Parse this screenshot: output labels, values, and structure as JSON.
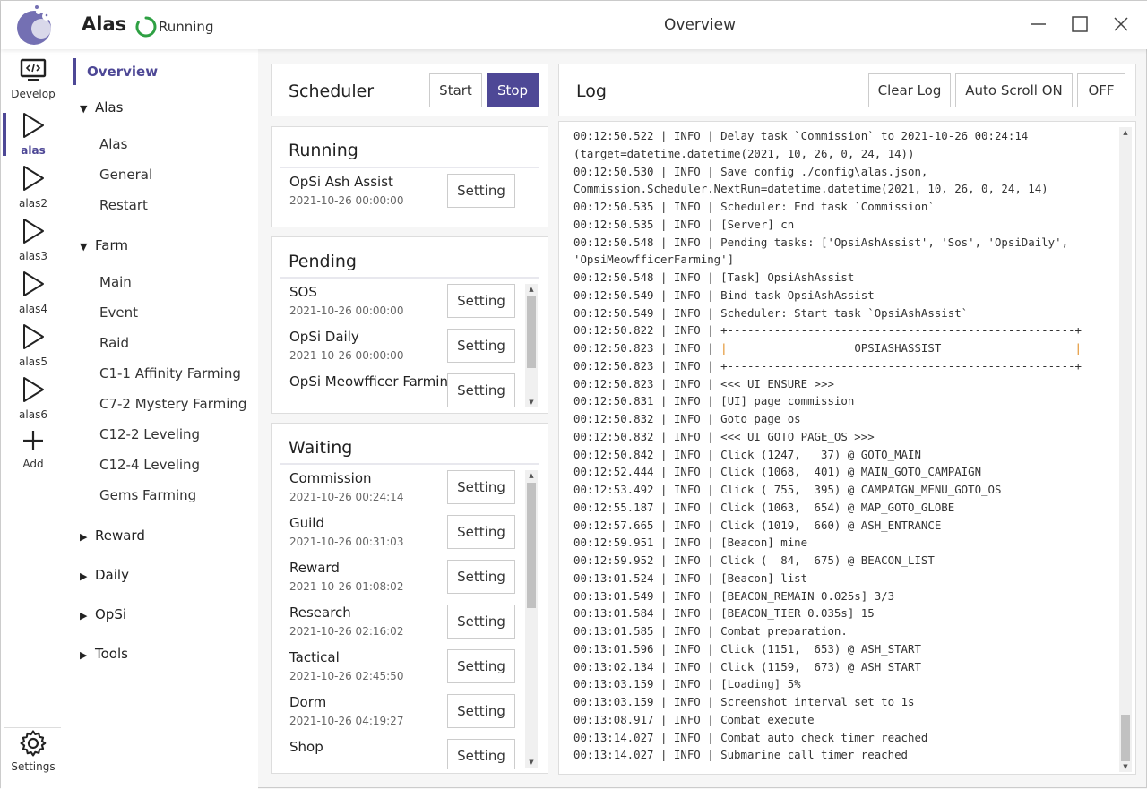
{
  "header": {
    "app_title": "Alas",
    "status": "Running",
    "page_title": "Overview",
    "status_color": "#2ea043"
  },
  "accent": "#4e4896",
  "iconbar": {
    "items": [
      {
        "label": "Develop",
        "icon": "monitor-code-icon"
      },
      {
        "label": "alas",
        "icon": "play-icon",
        "selected": true
      },
      {
        "label": "alas2",
        "icon": "play-icon"
      },
      {
        "label": "alas3",
        "icon": "play-icon"
      },
      {
        "label": "alas4",
        "icon": "play-icon"
      },
      {
        "label": "alas5",
        "icon": "play-icon"
      },
      {
        "label": "alas6",
        "icon": "play-icon"
      },
      {
        "label": "Add",
        "icon": "plus-icon"
      }
    ],
    "settings": "Settings"
  },
  "nav": {
    "overview": "Overview",
    "groups": [
      {
        "label": "Alas",
        "expanded": true,
        "items": [
          "Alas",
          "General",
          "Restart"
        ]
      },
      {
        "label": "Farm",
        "expanded": true,
        "items": [
          "Main",
          "Event",
          "Raid",
          "C1-1 Affinity Farming",
          "C7-2 Mystery Farming",
          "C12-2 Leveling",
          "C12-4 Leveling",
          "Gems Farming"
        ]
      },
      {
        "label": "Reward",
        "expanded": false,
        "items": []
      },
      {
        "label": "Daily",
        "expanded": false,
        "items": []
      },
      {
        "label": "OpSi",
        "expanded": false,
        "items": []
      },
      {
        "label": "Tools",
        "expanded": false,
        "items": []
      }
    ]
  },
  "scheduler": {
    "title": "Scheduler",
    "start": "Start",
    "stop": "Stop"
  },
  "setting_label": "Setting",
  "running": {
    "title": "Running",
    "tasks": [
      {
        "name": "OpSi Ash Assist",
        "time": "2021-10-26 00:00:00"
      }
    ]
  },
  "pending": {
    "title": "Pending",
    "tasks": [
      {
        "name": "SOS",
        "time": "2021-10-26 00:00:00"
      },
      {
        "name": "OpSi Daily",
        "time": "2021-10-26 00:00:00"
      },
      {
        "name": "OpSi Meowfficer Farming",
        "time": ""
      }
    ]
  },
  "waiting": {
    "title": "Waiting",
    "tasks": [
      {
        "name": "Commission",
        "time": "2021-10-26 00:24:14"
      },
      {
        "name": "Guild",
        "time": "2021-10-26 00:31:03"
      },
      {
        "name": "Reward",
        "time": "2021-10-26 01:08:02"
      },
      {
        "name": "Research",
        "time": "2021-10-26 02:16:02"
      },
      {
        "name": "Tactical",
        "time": "2021-10-26 02:45:50"
      },
      {
        "name": "Dorm",
        "time": "2021-10-26 04:19:27"
      },
      {
        "name": "Shop",
        "time": ""
      }
    ]
  },
  "log": {
    "title": "Log",
    "clear": "Clear Log",
    "autoscroll": "Auto Scroll ON",
    "off": "OFF",
    "lines": [
      "00:12:50.522 | INFO | Delay task `Commission` to 2021-10-26 00:24:14",
      "(target=datetime.datetime(2021, 10, 26, 0, 24, 14))",
      "00:12:50.530 | INFO | Save config ./config\\alas.json,",
      "Commission.Scheduler.NextRun=datetime.datetime(2021, 10, 26, 0, 24, 14)",
      "00:12:50.535 | INFO | Scheduler: End task `Commission`",
      "00:12:50.535 | INFO | [Server] cn",
      "00:12:50.548 | INFO | Pending tasks: ['OpsiAshAssist', 'Sos', 'OpsiDaily',",
      "'OpsiMeowfficerFarming']",
      "00:12:50.548 | INFO | [Task] OpsiAshAssist",
      "00:12:50.549 | INFO | Bind task OpsiAshAssist",
      "00:12:50.549 | INFO | Scheduler: Start task `OpsiAshAssist`",
      "00:12:50.822 | INFO | +----------------------------------------------------+",
      "00:12:50.823 | INFO | |                   OPSIASHASSIST                    |",
      "00:12:50.823 | INFO | +----------------------------------------------------+",
      "00:12:50.823 | INFO | <<< UI ENSURE >>>",
      "00:12:50.831 | INFO | [UI] page_commission",
      "00:12:50.832 | INFO | Goto page_os",
      "00:12:50.832 | INFO | <<< UI GOTO PAGE_OS >>>",
      "00:12:50.842 | INFO | Click (1247,   37) @ GOTO_MAIN",
      "00:12:52.444 | INFO | Click (1068,  401) @ MAIN_GOTO_CAMPAIGN",
      "00:12:53.492 | INFO | Click ( 755,  395) @ CAMPAIGN_MENU_GOTO_OS",
      "00:12:55.187 | INFO | Click (1063,  654) @ MAP_GOTO_GLOBE",
      "00:12:57.665 | INFO | Click (1019,  660) @ ASH_ENTRANCE",
      "00:12:59.951 | INFO | [Beacon] mine",
      "00:12:59.952 | INFO | Click (  84,  675) @ BEACON_LIST",
      "00:13:01.524 | INFO | [Beacon] list",
      "00:13:01.549 | INFO | [BEACON_REMAIN 0.025s] 3/3",
      "00:13:01.584 | INFO | [BEACON_TIER 0.035s] 15",
      "00:13:01.585 | INFO | Combat preparation.",
      "00:13:01.596 | INFO | Click (1151,  653) @ ASH_START",
      "00:13:02.134 | INFO | Click (1159,  673) @ ASH_START",
      "00:13:03.159 | INFO | [Loading] 5%",
      "00:13:03.159 | INFO | Screenshot interval set to 1s",
      "00:13:08.917 | INFO | Combat execute",
      "00:13:14.027 | INFO | Combat auto check timer reached",
      "00:13:14.027 | INFO | Submarine call timer reached"
    ]
  }
}
